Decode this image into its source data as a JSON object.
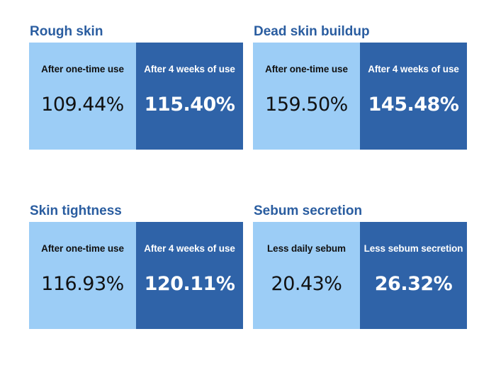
{
  "sections": [
    {
      "title": "Rough skin",
      "left": {
        "label": "After one-time use",
        "value": "109.44%"
      },
      "right": {
        "label": "After 4 weeks of use",
        "value": "115.40%"
      }
    },
    {
      "title": "Dead skin buildup",
      "left": {
        "label": "After one-time use",
        "value": "159.50%"
      },
      "right": {
        "label": "After 4 weeks of use",
        "value": "145.48%"
      }
    },
    {
      "title": "Skin tightness",
      "left": {
        "label": "After one-time use",
        "value": "116.93%"
      },
      "right": {
        "label": "After 4 weeks of use",
        "value": "120.11%"
      }
    },
    {
      "title": "Sebum secretion",
      "left": {
        "label": "Less daily sebum",
        "value": "20.43%"
      },
      "right": {
        "label": "Less sebum secretion",
        "value": "26.32%"
      }
    }
  ],
  "colors": {
    "title": "#2a5da0",
    "light_panel": "#9ccdf6",
    "dark_panel": "#2f63a8"
  }
}
